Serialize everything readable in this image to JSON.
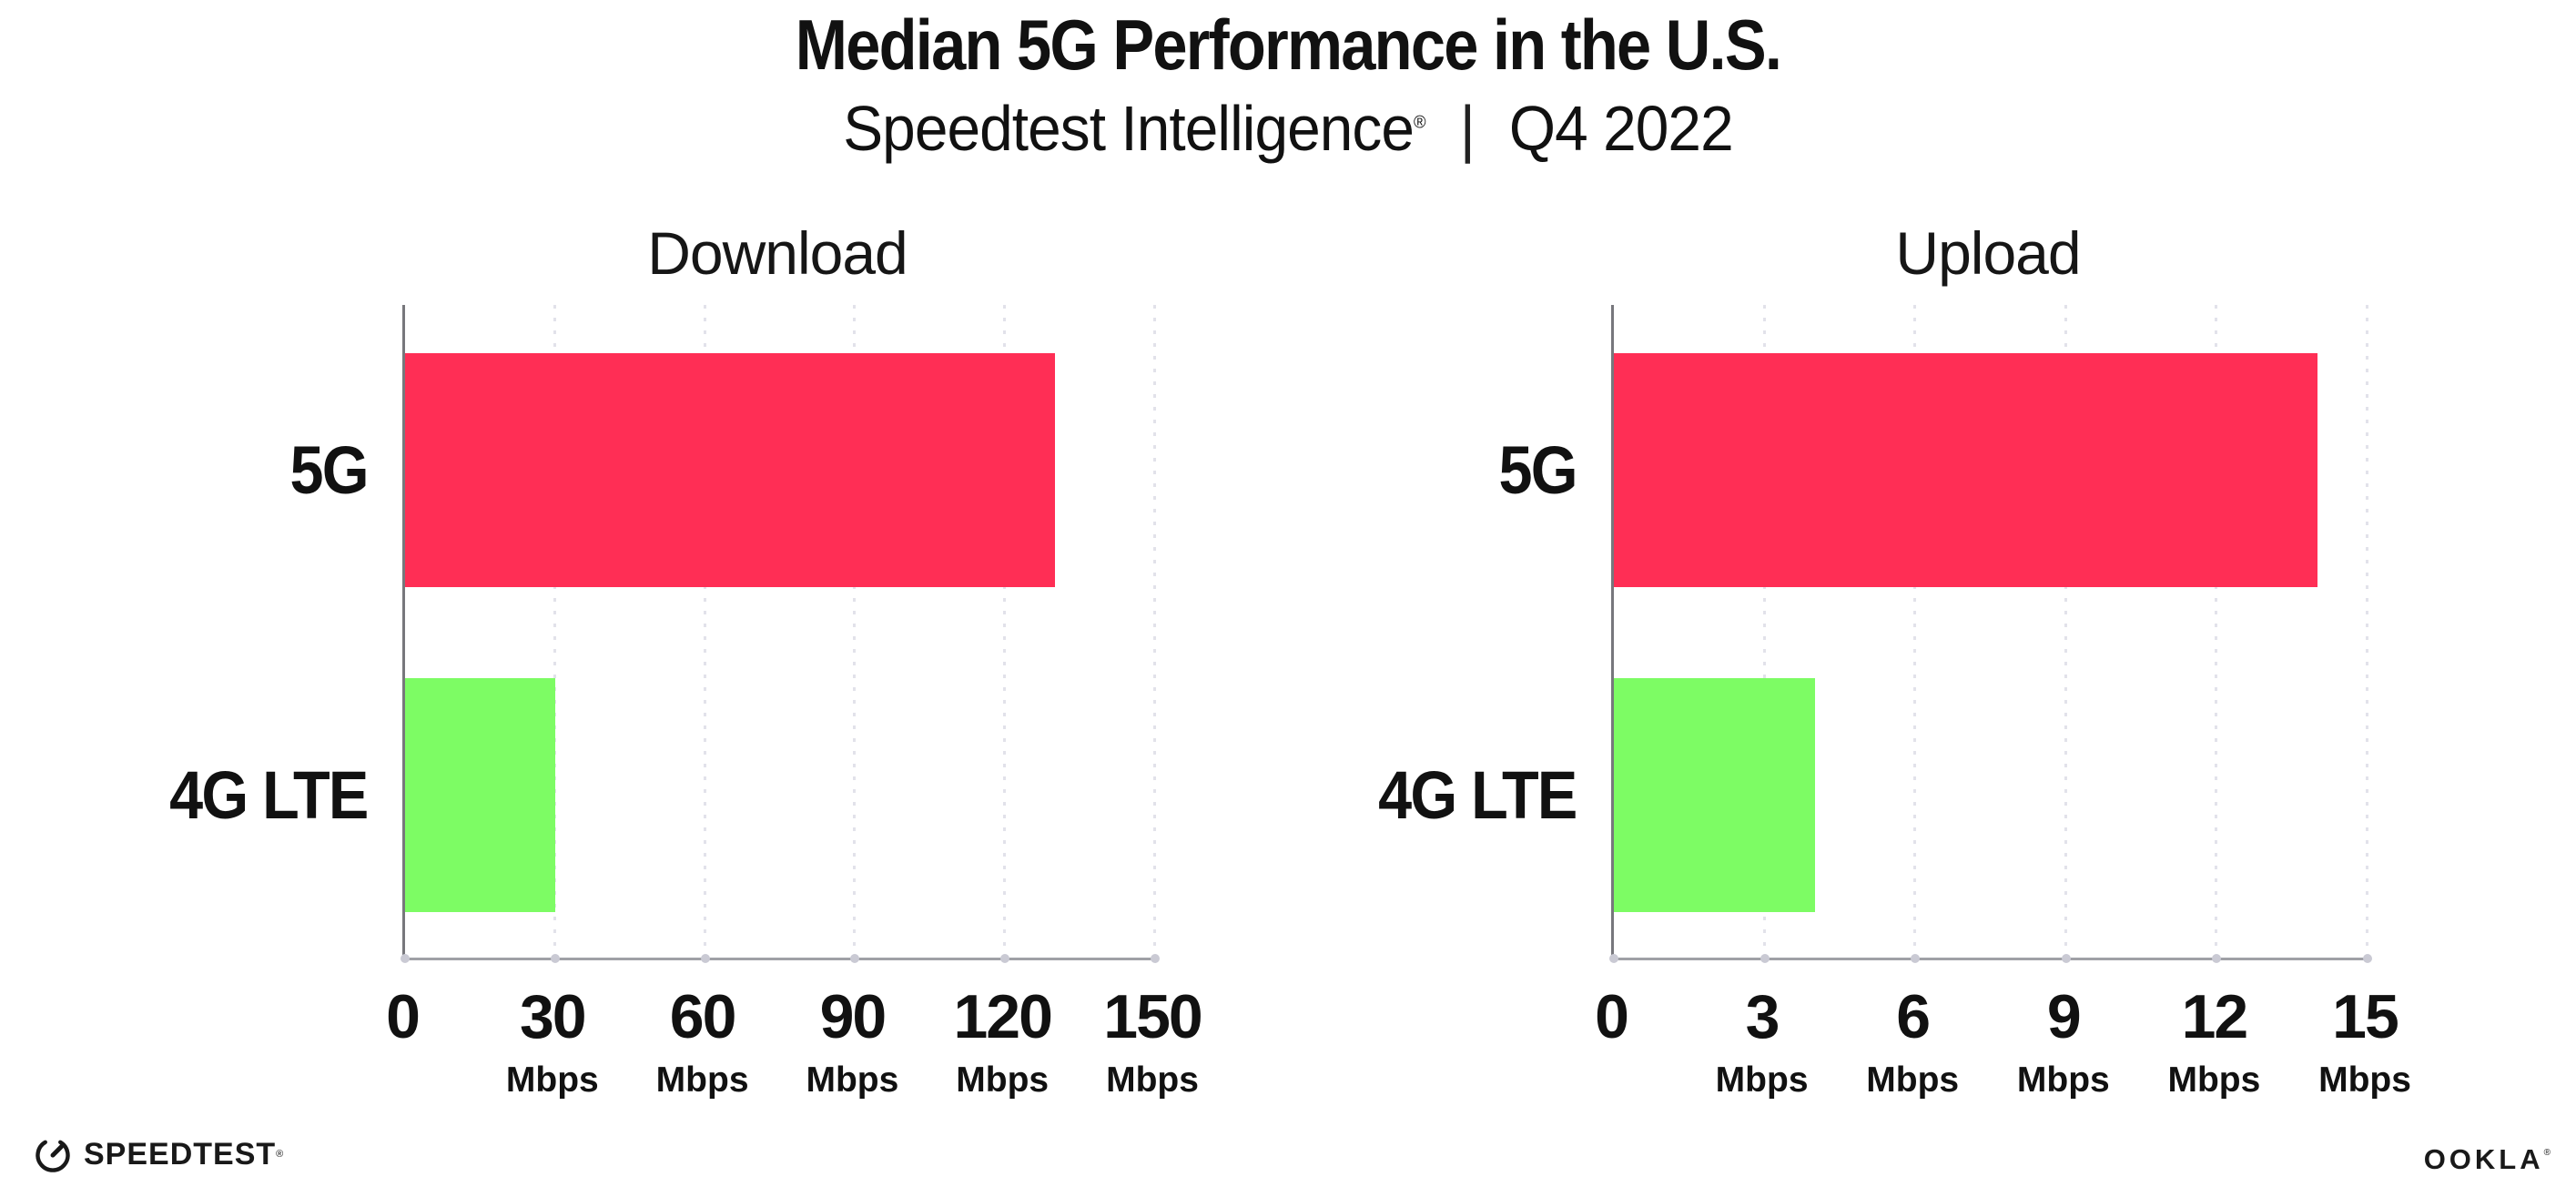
{
  "header": {
    "title": "Median 5G Performance in the U.S.",
    "subtitle_brand": "Speedtest Intelligence",
    "subtitle_reg": "®",
    "subtitle_divider": "|",
    "subtitle_period": "Q4 2022"
  },
  "chart_data": [
    {
      "type": "bar",
      "orientation": "horizontal",
      "title": "Download",
      "categories": [
        "5G",
        "4G LTE"
      ],
      "values": [
        130,
        30
      ],
      "unit": "Mbps",
      "xlim": [
        0,
        150
      ],
      "xticks": [
        0,
        30,
        60,
        90,
        120,
        150
      ],
      "tick_unit": "Mbps",
      "grid": "dotted-vertical",
      "bar_colors": [
        "#FF2E55",
        "#7DFC64"
      ]
    },
    {
      "type": "bar",
      "orientation": "horizontal",
      "title": "Upload",
      "categories": [
        "5G",
        "4G LTE"
      ],
      "values": [
        14,
        4
      ],
      "unit": "Mbps",
      "xlim": [
        0,
        15
      ],
      "xticks": [
        0,
        3,
        6,
        9,
        12,
        15
      ],
      "tick_unit": "Mbps",
      "grid": "dotted-vertical",
      "bar_colors": [
        "#FF2E55",
        "#7DFC64"
      ]
    }
  ],
  "colors": {
    "bar_5g": "#FF2E55",
    "bar_4g_lte": "#7DFC64",
    "gridline": "#E2E2EA",
    "axis_x": "#9FA0A6",
    "axis_y": "#77777C",
    "axis_dot": "#CACAD4",
    "text": "#111111",
    "background": "#FFFFFF"
  },
  "footer": {
    "speedtest_wordmark": "SPEEDTEST",
    "speedtest_reg": "®",
    "speedtest_icon": "speedometer-gauge-icon",
    "ookla_wordmark": "OOKLA",
    "ookla_reg": "®"
  }
}
